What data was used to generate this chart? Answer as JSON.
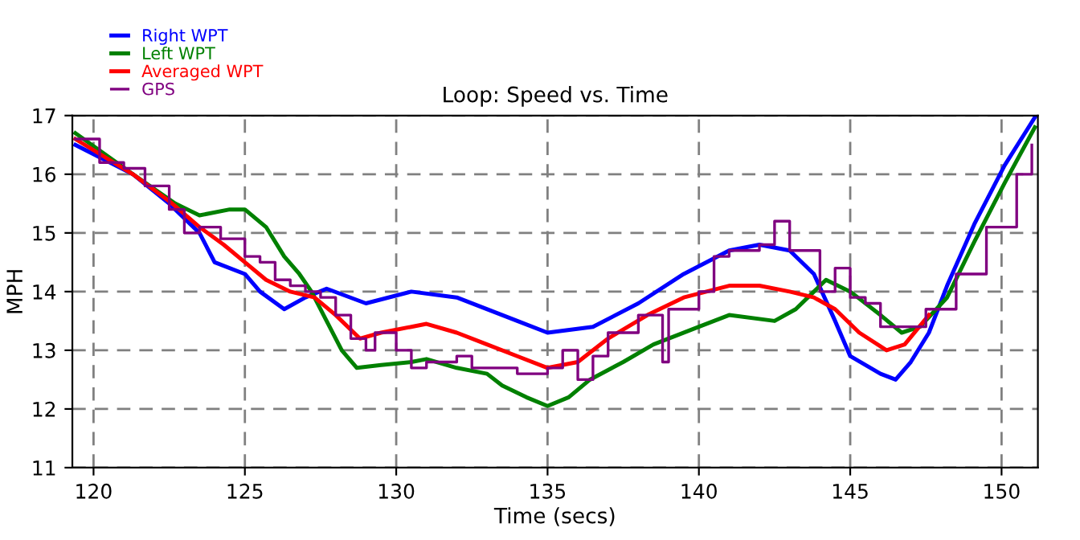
{
  "chart_data": {
    "type": "line",
    "title": "Loop: Speed vs. Time",
    "xlabel": "Time (secs)",
    "ylabel": "MPH",
    "xlim": [
      119.3,
      151.2
    ],
    "ylim": [
      11,
      17
    ],
    "xticks": [
      120,
      125,
      130,
      135,
      140,
      145,
      150
    ],
    "yticks": [
      11,
      12,
      13,
      14,
      15,
      16,
      17
    ],
    "grid": true,
    "legend": "top left",
    "marker": "none",
    "series": [
      {
        "name": "Right WPT",
        "color": "#0000ff",
        "x": [
          119.4,
          121.3,
          122.5,
          123.5,
          124,
          125,
          125.5,
          126.3,
          127,
          127.7,
          129,
          130.5,
          132,
          134,
          135,
          136.5,
          138,
          139.5,
          141,
          142,
          143,
          143.8,
          144.5,
          145,
          146,
          146.5,
          147,
          147.6,
          148.2,
          149.1,
          150.1,
          151.1
        ],
        "values": [
          16.5,
          16,
          15.5,
          15.0,
          14.5,
          14.3,
          14.0,
          13.7,
          13.9,
          14.05,
          13.8,
          14.0,
          13.9,
          13.5,
          13.3,
          13.4,
          13.8,
          14.3,
          14.7,
          14.8,
          14.7,
          14.3,
          13.5,
          12.9,
          12.6,
          12.5,
          12.8,
          13.3,
          14.1,
          15.15,
          16.15,
          16.97
        ]
      },
      {
        "name": "Left WPT",
        "color": "#008000",
        "x": [
          119.4,
          121.3,
          122.7,
          123.5,
          124.5,
          125,
          125.7,
          126.3,
          126.8,
          127.2,
          127.6,
          128.2,
          128.7,
          129.5,
          130.5,
          131,
          132,
          133,
          133.5,
          134.3,
          135,
          135.7,
          136.4,
          137.5,
          138.5,
          140,
          141,
          142.5,
          143.2,
          143.8,
          144.2,
          145,
          146,
          146.7,
          147.3,
          148.2,
          149.1,
          150.1,
          151.1
        ],
        "values": [
          16.7,
          16,
          15.5,
          15.3,
          15.4,
          15.4,
          15.1,
          14.6,
          14.3,
          14.0,
          13.6,
          13.0,
          12.7,
          12.75,
          12.8,
          12.85,
          12.7,
          12.6,
          12.4,
          12.2,
          12.05,
          12.2,
          12.5,
          12.8,
          13.1,
          13.4,
          13.6,
          13.5,
          13.7,
          14.0,
          14.2,
          14.0,
          13.6,
          13.3,
          13.4,
          13.9,
          14.85,
          15.85,
          16.8
        ]
      },
      {
        "name": "Averaged WPT",
        "color": "#ff0000",
        "x": [
          119.4,
          121.3,
          122.6,
          123.5,
          124.3,
          125,
          125.7,
          126.5,
          127.3,
          128,
          128.8,
          129.5,
          130.5,
          131,
          132,
          133,
          134,
          135,
          136,
          137,
          138.3,
          139.5,
          141,
          142,
          143,
          143.8,
          144.5,
          145.3,
          146.2,
          146.8,
          147.6
        ],
        "values": [
          16.6,
          16,
          15.5,
          15.1,
          14.8,
          14.5,
          14.2,
          14.0,
          13.9,
          13.6,
          13.2,
          13.3,
          13.4,
          13.45,
          13.3,
          13.1,
          12.9,
          12.7,
          12.8,
          13.2,
          13.6,
          13.9,
          14.1,
          14.1,
          14.0,
          13.9,
          13.7,
          13.3,
          13.0,
          13.1,
          13.6
        ]
      },
      {
        "name": "GPS",
        "color": "#800080",
        "type": "step",
        "x": [
          119.4,
          120.2,
          121,
          121.7,
          122.5,
          123,
          123.5,
          124.2,
          125,
          125.5,
          126,
          126.5,
          127,
          127.5,
          128,
          128.5,
          129,
          129.3,
          130,
          130.5,
          131,
          132,
          132.5,
          133,
          134,
          135,
          135.5,
          136,
          136.5,
          137,
          138,
          138.8,
          139,
          140,
          140.5,
          141,
          142,
          142.5,
          143,
          144,
          144.5,
          145,
          145.5,
          146,
          147,
          147.5,
          148.5,
          149.5,
          150.5,
          151
        ],
        "values": [
          16.6,
          16.2,
          16.1,
          15.8,
          15.4,
          15.0,
          15.1,
          14.9,
          14.6,
          14.5,
          14.2,
          14.1,
          14.0,
          13.9,
          13.6,
          13.2,
          13.0,
          13.3,
          13.0,
          12.7,
          12.8,
          12.9,
          12.7,
          12.7,
          12.6,
          12.7,
          13.0,
          12.5,
          12.9,
          13.3,
          13.6,
          12.8,
          13.7,
          14.0,
          14.6,
          14.7,
          14.8,
          15.2,
          14.7,
          14.0,
          14.4,
          13.9,
          13.8,
          13.4,
          13.4,
          13.7,
          14.3,
          15.1,
          16.0,
          16.5
        ]
      }
    ]
  }
}
